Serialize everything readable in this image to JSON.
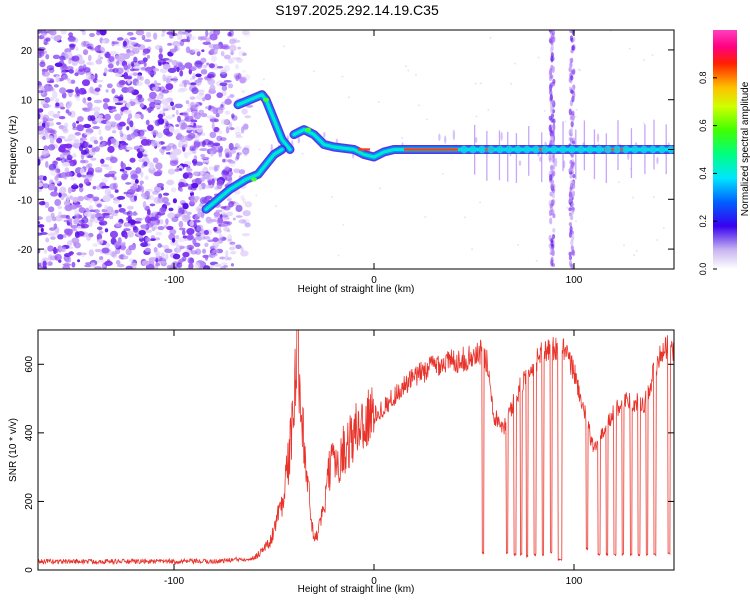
{
  "title": "S197.2025.292.14.19.C35",
  "chart_data": [
    {
      "type": "heatmap",
      "xlabel": "Height of straight line (km)",
      "ylabel": "Frequency (Hz)",
      "xlim": [
        -168,
        150
      ],
      "ylim": [
        -24,
        24
      ],
      "x_ticks": [
        -100,
        0,
        100
      ],
      "y_ticks": [
        -20,
        -10,
        0,
        10,
        20
      ],
      "colorbar": {
        "label": "Normalized spectral amplitude",
        "ticks": [
          "0.0",
          "0.2",
          "0.4",
          "0.6",
          "0.8"
        ],
        "range": [
          0,
          1
        ]
      },
      "tracks": [
        {
          "name": "upper-branch",
          "points": [
            [
              -68,
              9
            ],
            [
              -62,
              10
            ],
            [
              -56,
              11
            ],
            [
              -54,
              10
            ],
            [
              -50,
              6
            ],
            [
              -46,
              2
            ],
            [
              -42,
              0
            ]
          ]
        },
        {
          "name": "lower-branch",
          "points": [
            [
              -84,
              -12
            ],
            [
              -78,
              -10
            ],
            [
              -72,
              -8
            ],
            [
              -64,
              -6
            ],
            [
              -58,
              -5
            ],
            [
              -54,
              -3
            ],
            [
              -50,
              -1
            ],
            [
              -46,
              0
            ]
          ]
        },
        {
          "name": "main-line",
          "points": [
            [
              -40,
              3
            ],
            [
              -35,
              4
            ],
            [
              -30,
              3
            ],
            [
              -25,
              1
            ],
            [
              -20,
              0.5
            ],
            [
              -10,
              0
            ],
            [
              -5,
              -1
            ],
            [
              0,
              -1.5
            ],
            [
              5,
              -0.5
            ],
            [
              10,
              0
            ],
            [
              30,
              0
            ],
            [
              60,
              0
            ],
            [
              85,
              0
            ],
            [
              100,
              0
            ],
            [
              130,
              0
            ],
            [
              150,
              0
            ]
          ]
        }
      ]
    },
    {
      "type": "line",
      "xlabel": "Height of straight line (km)",
      "ylabel": "SNR (10 * v/v)",
      "xlim": [
        -168,
        150
      ],
      "ylim": [
        0,
        700
      ],
      "x_ticks": [
        -100,
        0,
        100
      ],
      "y_ticks": [
        0,
        200,
        400,
        600
      ],
      "series": [
        {
          "name": "SNR",
          "color": "#e8332b",
          "envelope": [
            [
              -168,
              25
            ],
            [
              -120,
              25
            ],
            [
              -80,
              25
            ],
            [
              -60,
              35
            ],
            [
              -52,
              80
            ],
            [
              -46,
              200
            ],
            [
              -42,
              350
            ],
            [
              -38,
              640
            ],
            [
              -34,
              300
            ],
            [
              -30,
              80
            ],
            [
              -26,
              150
            ],
            [
              -22,
              300
            ],
            [
              -18,
              320
            ],
            [
              -12,
              380
            ],
            [
              -6,
              430
            ],
            [
              0,
              450
            ],
            [
              6,
              480
            ],
            [
              12,
              520
            ],
            [
              20,
              560
            ],
            [
              30,
              600
            ],
            [
              40,
              610
            ],
            [
              50,
              620
            ],
            [
              54,
              640
            ],
            [
              57,
              600
            ],
            [
              60,
              450
            ],
            [
              65,
              420
            ],
            [
              75,
              560
            ],
            [
              85,
              640
            ],
            [
              90,
              650
            ],
            [
              95,
              640
            ],
            [
              100,
              580
            ],
            [
              110,
              350
            ],
            [
              118,
              440
            ],
            [
              125,
              500
            ],
            [
              135,
              480
            ],
            [
              140,
              580
            ],
            [
              145,
              650
            ],
            [
              150,
              640
            ]
          ],
          "dropouts": [
            [
              54,
              55,
              50
            ],
            [
              66,
              67,
              50
            ],
            [
              70,
              71,
              45
            ],
            [
              73,
              74,
              45
            ],
            [
              76,
              77,
              40
            ],
            [
              80,
              81,
              45
            ],
            [
              84,
              85,
              45
            ],
            [
              88,
              89,
              50
            ],
            [
              92,
              94,
              30
            ],
            [
              106,
              107,
              60
            ],
            [
              112,
              113,
              45
            ],
            [
              116,
              117,
              45
            ],
            [
              120,
              121,
              45
            ],
            [
              124,
              125,
              45
            ],
            [
              128,
              129,
              45
            ],
            [
              132,
              133,
              45
            ],
            [
              136,
              137,
              45
            ],
            [
              140,
              141,
              45
            ],
            [
              147,
              148,
              50
            ]
          ]
        }
      ]
    }
  ]
}
